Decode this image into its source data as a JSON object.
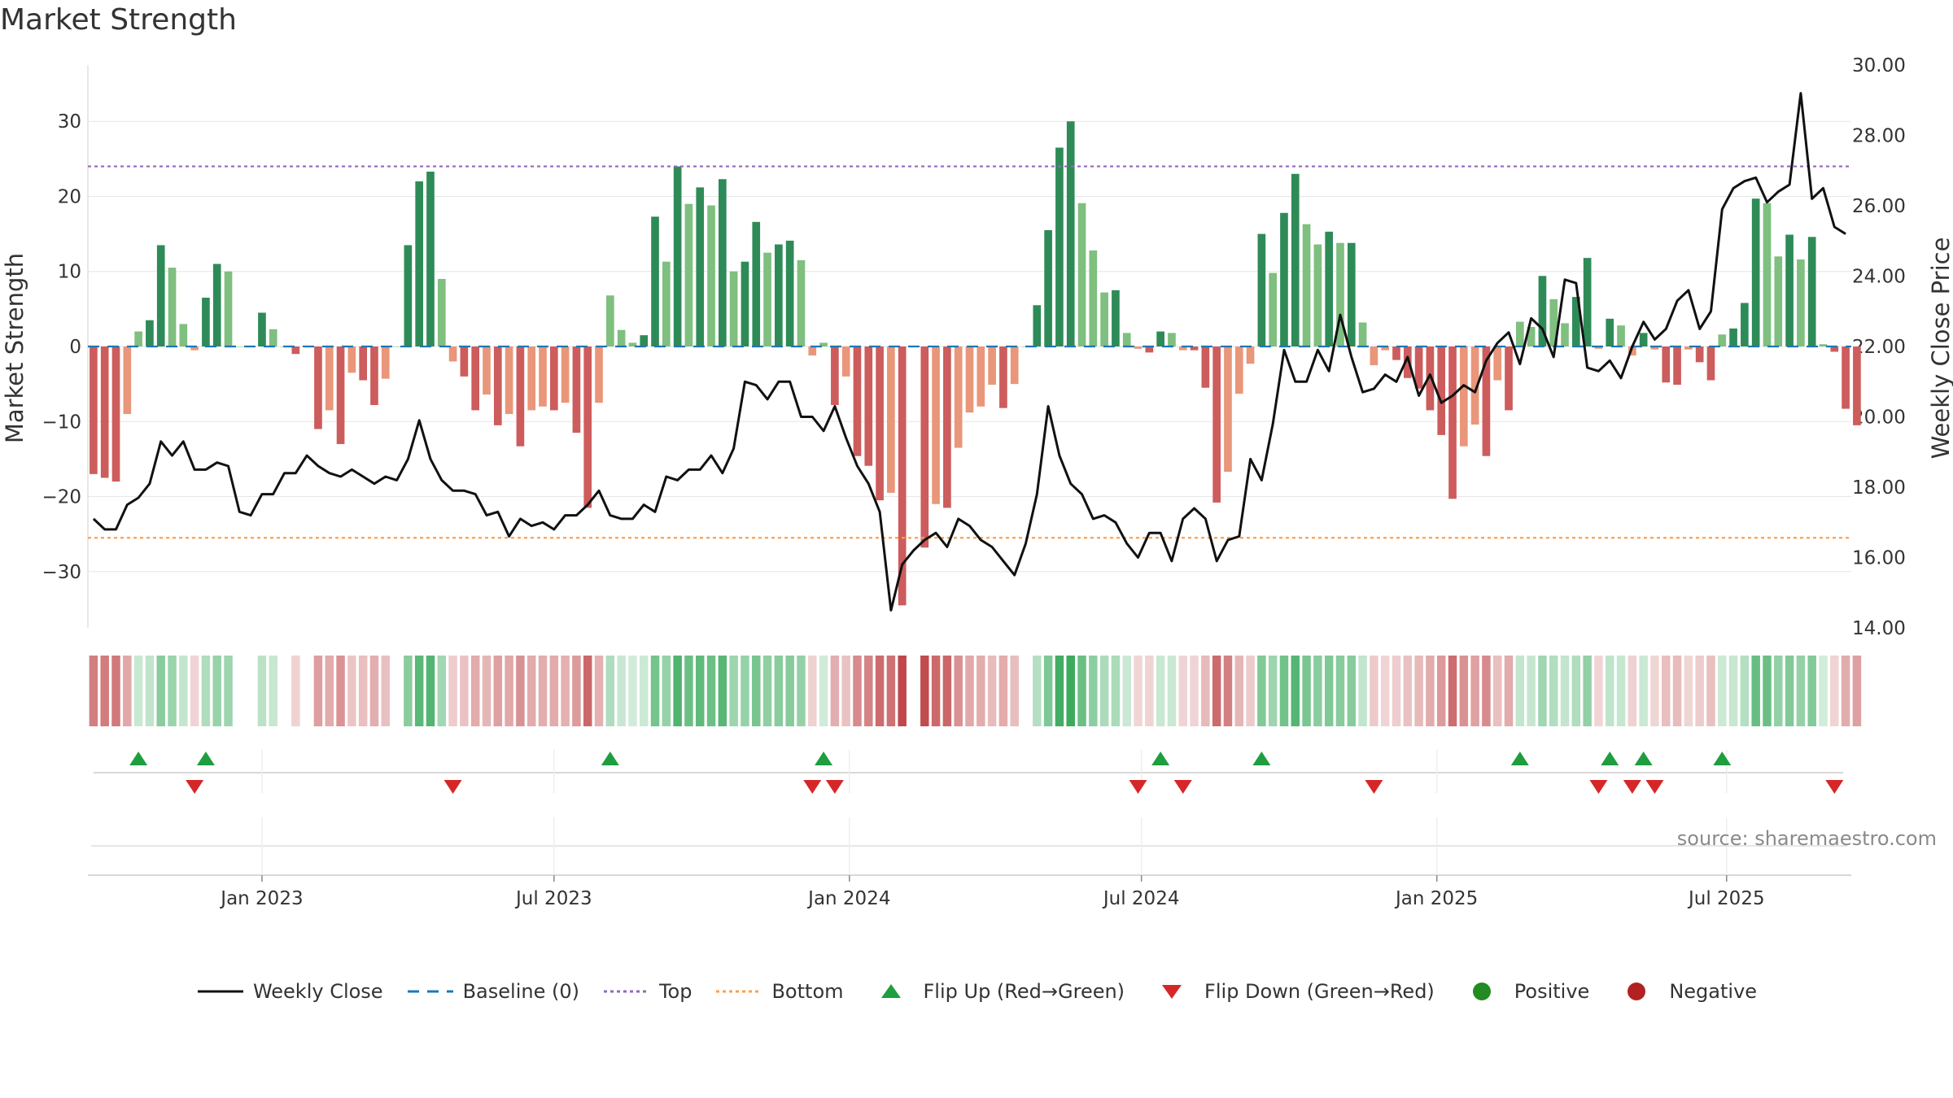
{
  "title": "Market Strength",
  "source": "source: sharemaestro.com",
  "chart_data": {
    "type": "bar+line",
    "title": "Market Strength",
    "ylabel_left": "Market Strength",
    "ylabel_right": "Weekly Close Price",
    "ylim_left": [
      -37.5,
      37.5
    ],
    "ylim_right": [
      14.0,
      30.0
    ],
    "yticks_left": [
      {
        "v": 30,
        "label": "30"
      },
      {
        "v": 20,
        "label": "20"
      },
      {
        "v": 10,
        "label": "10"
      },
      {
        "v": 0,
        "label": "0"
      },
      {
        "v": -10,
        "label": "−10"
      },
      {
        "v": -20,
        "label": "−20"
      },
      {
        "v": -30,
        "label": "−30"
      }
    ],
    "yticks_right": [
      {
        "v": 30,
        "label": "30.00"
      },
      {
        "v": 28,
        "label": "28.00"
      },
      {
        "v": 26,
        "label": "26.00"
      },
      {
        "v": 24,
        "label": "24.00"
      },
      {
        "v": 22,
        "label": "22.00"
      },
      {
        "v": 20,
        "label": "20.00"
      },
      {
        "v": 18,
        "label": "18.00"
      },
      {
        "v": 16,
        "label": "16.00"
      },
      {
        "v": 14,
        "label": "14.00"
      }
    ],
    "xrange_weeks": [
      0,
      157
    ],
    "xticks": [
      {
        "week": 15,
        "label": "Jan 2023"
      },
      {
        "week": 41,
        "label": "Jul 2023"
      },
      {
        "week": 67.3,
        "label": "Jan 2024"
      },
      {
        "week": 93.3,
        "label": "Jul 2024"
      },
      {
        "week": 119.6,
        "label": "Jan 2025"
      },
      {
        "week": 145.4,
        "label": "Jul 2025"
      }
    ],
    "top_line": 24,
    "bottom_line": -25.5,
    "strength": [
      -17,
      -17.5,
      -18,
      -9,
      2,
      3.5,
      13.5,
      10.5,
      3,
      -0.5,
      6.5,
      11,
      10,
      0,
      0,
      4.5,
      2.3,
      0,
      -1,
      0,
      -11,
      -8.5,
      -13,
      -3.5,
      -4.5,
      -7.8,
      -4.3,
      0,
      13.5,
      22,
      23.3,
      9,
      -2,
      -4,
      -8.5,
      -6.4,
      -10.5,
      -9,
      -13.3,
      -8.5,
      -8,
      -8.5,
      -7.5,
      -11.5,
      -21.5,
      -7.5,
      6.8,
      2.2,
      0.5,
      1.5,
      17.3,
      11.3,
      24,
      19,
      21.2,
      18.8,
      22.3,
      10,
      11.3,
      16.6,
      12.5,
      13.6,
      14.1,
      11.5,
      -1.2,
      0.5,
      -7.8,
      -4,
      -14.6,
      -15.9,
      -20.5,
      -19.5,
      -34.5,
      0,
      -26.8,
      -21,
      -21.5,
      -13.5,
      -8.8,
      -8,
      -5.1,
      -8.2,
      -5,
      0,
      5.5,
      15.5,
      26.5,
      30,
      19.1,
      12.8,
      7.2,
      7.5,
      1.8,
      -0.3,
      -0.8,
      2,
      1.8,
      -0.5,
      -0.5,
      -5.5,
      -20.8,
      -16.7,
      -6.3,
      -2.3,
      15,
      9.8,
      17.8,
      23,
      16.3,
      13.6,
      15.3,
      13.8,
      13.8,
      3.2,
      -2.5,
      -0.5,
      -1.8,
      -4.2,
      -5.6,
      -8.5,
      -11.8,
      -20.3,
      -13.3,
      -10.4,
      -14.6,
      -4.5,
      -8.5,
      3.3,
      2.6,
      9.4,
      6.3,
      3.1,
      6.6,
      11.8,
      -0.3,
      3.7,
      2.8,
      -1.2,
      1.8,
      -0.4,
      -4.8,
      -5.1,
      -0.4,
      -2.1,
      -4.5,
      1.6,
      2.4,
      5.8,
      19.7,
      19.1,
      12,
      14.9,
      11.6,
      14.6,
      0.3,
      -0.7,
      -8.3,
      -10.5
    ],
    "weekly_close": [
      17.1,
      16.8,
      16.8,
      17.5,
      17.7,
      18.1,
      19.3,
      18.9,
      19.3,
      18.5,
      18.5,
      18.7,
      18.6,
      17.3,
      17.2,
      17.8,
      17.8,
      18.4,
      18.4,
      18.9,
      18.6,
      18.4,
      18.3,
      18.5,
      18.3,
      18.1,
      18.3,
      18.2,
      18.8,
      19.9,
      18.8,
      18.2,
      17.9,
      17.9,
      17.8,
      17.2,
      17.3,
      16.6,
      17.1,
      16.9,
      17.0,
      16.8,
      17.2,
      17.2,
      17.5,
      17.9,
      17.2,
      17.1,
      17.1,
      17.5,
      17.3,
      18.3,
      18.2,
      18.5,
      18.5,
      18.9,
      18.4,
      19.1,
      21.0,
      20.9,
      20.5,
      21.0,
      21.0,
      20.0,
      20.0,
      19.6,
      20.3,
      19.4,
      18.6,
      18.1,
      17.3,
      14.5,
      15.8,
      16.2,
      16.5,
      16.7,
      16.3,
      17.1,
      16.9,
      16.5,
      16.3,
      15.9,
      15.5,
      16.4,
      17.8,
      20.3,
      18.9,
      18.1,
      17.8,
      17.1,
      17.2,
      17.0,
      16.4,
      16.0,
      16.7,
      16.7,
      15.9,
      17.1,
      17.4,
      17.1,
      15.9,
      16.5,
      16.6,
      18.8,
      18.2,
      19.8,
      21.9,
      21.0,
      21.0,
      21.9,
      21.3,
      22.9,
      21.7,
      20.7,
      20.8,
      21.2,
      21.0,
      21.7,
      20.6,
      21.2,
      20.4,
      20.6,
      20.9,
      20.7,
      21.6,
      22.1,
      22.4,
      21.5,
      22.8,
      22.5,
      21.7,
      23.9,
      23.8,
      21.4,
      21.3,
      21.6,
      21.1,
      22.0,
      22.7,
      22.2,
      22.5,
      23.3,
      23.6,
      22.5,
      23.0,
      25.9,
      26.5,
      26.7,
      26.8,
      26.1,
      26.4,
      26.6,
      29.2,
      26.2,
      26.5,
      25.4,
      25.2
    ]
  },
  "legend": [
    {
      "label": "Weekly Close",
      "icon": "line-solid-icon",
      "color": "#111111"
    },
    {
      "label": "Baseline (0)",
      "icon": "line-dashed-icon",
      "color": "#1f77b4"
    },
    {
      "label": "Top",
      "icon": "line-dotted-icon",
      "color": "#9467bd"
    },
    {
      "label": "Bottom",
      "icon": "line-dotted-icon",
      "color": "#ff9e4a"
    },
    {
      "label": "Flip Up (Red→Green)",
      "icon": "triangle-up-icon",
      "color": "#1e9e3e"
    },
    {
      "label": "Flip Down (Green→Red)",
      "icon": "triangle-down-icon",
      "color": "#d62728"
    },
    {
      "label": "Positive",
      "icon": "circle-icon",
      "color": "#228b22"
    },
    {
      "label": "Negative",
      "icon": "circle-icon",
      "color": "#b22222"
    }
  ],
  "colors": {
    "pos_strong": "#2e8b57",
    "pos_weak": "#7fbf7f",
    "neg_strong": "#cd5c5c",
    "neg_weak": "#e9967a",
    "price": "#111111",
    "baseline": "#1f77b4",
    "top": "#9467bd",
    "bottom": "#ff9e4a",
    "flip_up": "#1e9e3e",
    "flip_down": "#d62728",
    "grid": "#e6e6e6"
  }
}
